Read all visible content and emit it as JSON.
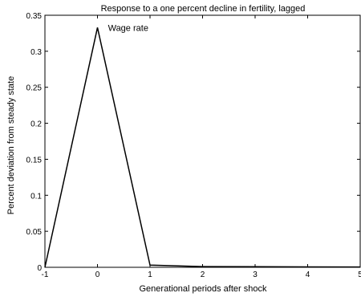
{
  "chart_data": {
    "type": "line",
    "title": "Response to a one percent decline in fertility, lagged",
    "xlabel": "Generational periods after shock",
    "ylabel": "Percent deviation from steady state",
    "xlim": [
      -1,
      5
    ],
    "ylim": [
      0,
      0.35
    ],
    "x_ticks": [
      -1,
      0,
      1,
      2,
      3,
      4,
      5
    ],
    "x_tick_labels": [
      "-1",
      "0",
      "1",
      "2",
      "3",
      "4",
      "5"
    ],
    "y_ticks": [
      0,
      0.05,
      0.1,
      0.15,
      0.2,
      0.25,
      0.3,
      0.35
    ],
    "y_tick_labels": [
      "0",
      "0.05",
      "0.1",
      "0.15",
      "0.2",
      "0.25",
      "0.3",
      "0.35"
    ],
    "grid": false,
    "series": [
      {
        "name": "Wage rate",
        "x": [
          -1,
          0,
          1,
          2,
          3,
          4,
          5
        ],
        "y": [
          0,
          0.333,
          0.003,
          0.001,
          0.0008,
          0.0006,
          0.0005
        ]
      }
    ],
    "annotations": [
      {
        "text": "Wage rate",
        "x": 0.2,
        "y": 0.333
      }
    ],
    "line_color": "#000000"
  }
}
